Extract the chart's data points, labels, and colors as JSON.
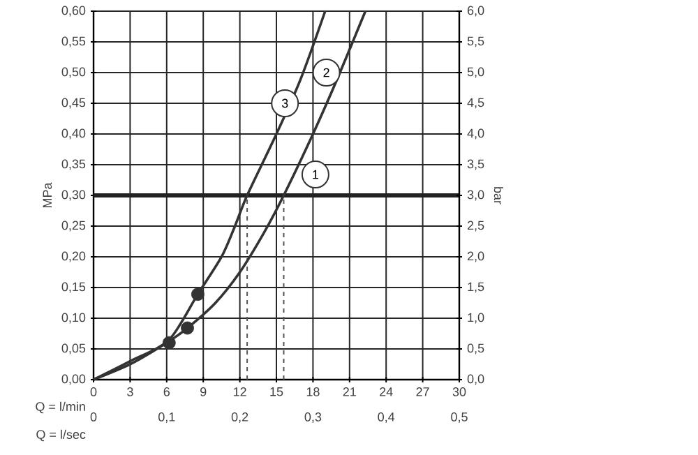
{
  "chart_data": {
    "type": "line",
    "xlabel": "Q = l/min",
    "x2label": "Q = l/sec",
    "ylabel": "MPa",
    "y2label": "bar",
    "xlim": [
      0,
      30
    ],
    "xticks": [
      0,
      3,
      6,
      9,
      12,
      15,
      18,
      21,
      24,
      27,
      30
    ],
    "x2lim": [
      0,
      0.5
    ],
    "x2ticks": [
      0,
      {
        "value": 0.1,
        "label": "0,1"
      },
      {
        "value": 0.2,
        "label": "0,2"
      },
      {
        "value": 0.3,
        "label": "0,3"
      },
      {
        "value": 0.4,
        "label": "0,4"
      },
      {
        "value": 0.5,
        "label": "0,5"
      }
    ],
    "ylim": [
      0,
      0.6
    ],
    "yticks": [
      {
        "value": 0,
        "label": "0,00"
      },
      {
        "value": 0.05,
        "label": "0,05"
      },
      {
        "value": 0.1,
        "label": "0,10"
      },
      {
        "value": 0.15,
        "label": "0,15"
      },
      {
        "value": 0.2,
        "label": "0,20"
      },
      {
        "value": 0.25,
        "label": "0,25"
      },
      {
        "value": 0.3,
        "label": "0,30"
      },
      {
        "value": 0.35,
        "label": "0,35"
      },
      {
        "value": 0.4,
        "label": "0,40"
      },
      {
        "value": 0.45,
        "label": "0,45"
      },
      {
        "value": 0.5,
        "label": "0,50"
      },
      {
        "value": 0.55,
        "label": "0,55"
      },
      {
        "value": 0.6,
        "label": "0,60"
      }
    ],
    "y2lim": [
      0,
      6
    ],
    "y2ticks": [
      {
        "value": 0,
        "label": "0,0"
      },
      {
        "value": 0.5,
        "label": "0,5"
      },
      {
        "value": 1,
        "label": "1,0"
      },
      {
        "value": 1.5,
        "label": "1,5"
      },
      {
        "value": 2,
        "label": "2,0"
      },
      {
        "value": 2.5,
        "label": "2,5"
      },
      {
        "value": 3,
        "label": "3,0"
      },
      {
        "value": 3.5,
        "label": "3,5"
      },
      {
        "value": 4,
        "label": "4,0"
      },
      {
        "value": 4.5,
        "label": "4,5"
      },
      {
        "value": 5,
        "label": "5,0"
      },
      {
        "value": 5.5,
        "label": "5,5"
      },
      {
        "value": 6,
        "label": "6,0"
      }
    ],
    "grid": true,
    "marker": "none",
    "line_style": "solid",
    "series": [
      {
        "color": "#333333",
        "x": [
          0,
          3,
          6,
          7.7,
          10,
          12,
          14,
          15.6,
          18,
          20,
          22.3
        ],
        "values": [
          0,
          0.025,
          0.06,
          0.084,
          0.125,
          0.175,
          0.24,
          0.3,
          0.4,
          0.49,
          0.6
        ]
      },
      {
        "color": "#333333",
        "x": [
          0,
          3,
          6.2,
          8.55,
          10.5,
          11.6,
          12.6,
          15,
          17,
          19
        ],
        "values": [
          0,
          0.03,
          0.065,
          0.139,
          0.2,
          0.25,
          0.3,
          0.4,
          0.49,
          0.6
        ]
      },
      {
        "type": "scatter",
        "marker": "circle",
        "color": "#333333",
        "x": [
          6.2,
          7.7,
          8.55
        ],
        "values": [
          0.06,
          0.084,
          0.139
        ]
      }
    ],
    "ref_lines": [
      {
        "axis": "y",
        "value": 0.3,
        "color": "#222222",
        "line_style": "solid"
      },
      {
        "axis": "x",
        "value": 12.6,
        "color": "#555555",
        "line_style": "dashed"
      },
      {
        "axis": "x",
        "value": 15.6,
        "color": "#555555",
        "line_style": "dashed"
      }
    ],
    "annotations": [
      {
        "text": "1",
        "x": 18.2,
        "y": 0.334
      },
      {
        "text": "2",
        "x": 19.1,
        "y": 0.5
      },
      {
        "text": "3",
        "x": 15.7,
        "y": 0.45
      }
    ]
  }
}
